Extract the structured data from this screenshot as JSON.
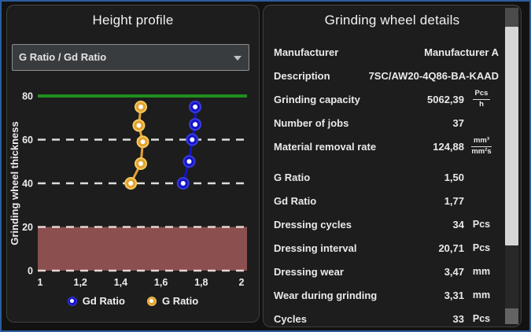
{
  "window": {
    "bg": "#121212",
    "border_color": "#2b5d9e"
  },
  "height_profile": {
    "title": "Height profile",
    "dropdown": {
      "value": "G Ratio  / Gd Ratio"
    },
    "chart_data": {
      "type": "line",
      "title": "",
      "xlabel": "",
      "ylabel": "Grinding wheel thickness",
      "xlim": [
        1,
        2
      ],
      "ylim": [
        0,
        80
      ],
      "grid": "dashed-horizontal",
      "legend_position": "bottom",
      "x_ticks": [
        "1",
        "1,2",
        "1,4",
        "1,6",
        "1,8",
        "2"
      ],
      "x_tick_values": [
        1,
        1.2,
        1.4,
        1.6,
        1.8,
        2
      ],
      "y_ticks": [
        "80",
        "60",
        "40",
        "20",
        "0"
      ],
      "y_tick_values": [
        80,
        60,
        40,
        20,
        0
      ],
      "series": [
        {
          "name": "Gd Ratio",
          "color": "#1414cc",
          "ring": "#3b3bdd",
          "points": [
            [
              1.77,
              75
            ],
            [
              1.77,
              67
            ],
            [
              1.755,
              60
            ],
            [
              1.74,
              50
            ],
            [
              1.71,
              40
            ]
          ]
        },
        {
          "name": "G Ratio",
          "color": "#e2a231",
          "ring": "#f5c95e",
          "points": [
            [
              1.5,
              75
            ],
            [
              1.49,
              66.5
            ],
            [
              1.51,
              59
            ],
            [
              1.5,
              49
            ],
            [
              1.45,
              40
            ]
          ]
        }
      ],
      "reference_lines": [
        {
          "value": 80,
          "style": "solid",
          "color": "#1f8f1f"
        },
        {
          "value": 60,
          "style": "dashed",
          "color": "#dcdcdc"
        },
        {
          "value": 40,
          "style": "dashed",
          "color": "#dcdcdc"
        }
      ],
      "danger_zone": {
        "from": 0,
        "to": 20,
        "fill": "#8a4f4e",
        "border_color": "#e9d4d4"
      }
    }
  },
  "details": {
    "title": "Grinding wheel details",
    "rows": [
      {
        "label": "Manufacturer",
        "value": "Manufacturer  A",
        "wide": true
      },
      {
        "label": "Description",
        "value": "7SC/AW20-4Q86-BA-KAAD",
        "wide": true
      },
      {
        "label": "Grinding capacity",
        "value": "5062,39",
        "fraction": {
          "num": "Pcs",
          "den": "h"
        }
      },
      {
        "label": "Number of jobs",
        "value": "37",
        "unit": ""
      },
      {
        "label": "Material removal rate",
        "value": "124,88",
        "fraction": {
          "num": "mm³",
          "den": "mm²s"
        }
      },
      {
        "label": "G Ratio",
        "value": "1,50",
        "unit": "",
        "group_start": true
      },
      {
        "label": "Gd Ratio",
        "value": "1,77",
        "unit": ""
      },
      {
        "label": "Dressing cycles",
        "value": "34",
        "unit": "Pcs"
      },
      {
        "label": "Dressing interval",
        "value": "20,71",
        "unit": "Pcs"
      },
      {
        "label": "Dressing wear",
        "value": "3,47",
        "unit": "mm"
      },
      {
        "label": "Wear during grinding",
        "value": "3,31",
        "unit": "mm"
      },
      {
        "label": "Cycles",
        "value": "33",
        "unit": "Pcs"
      }
    ]
  }
}
